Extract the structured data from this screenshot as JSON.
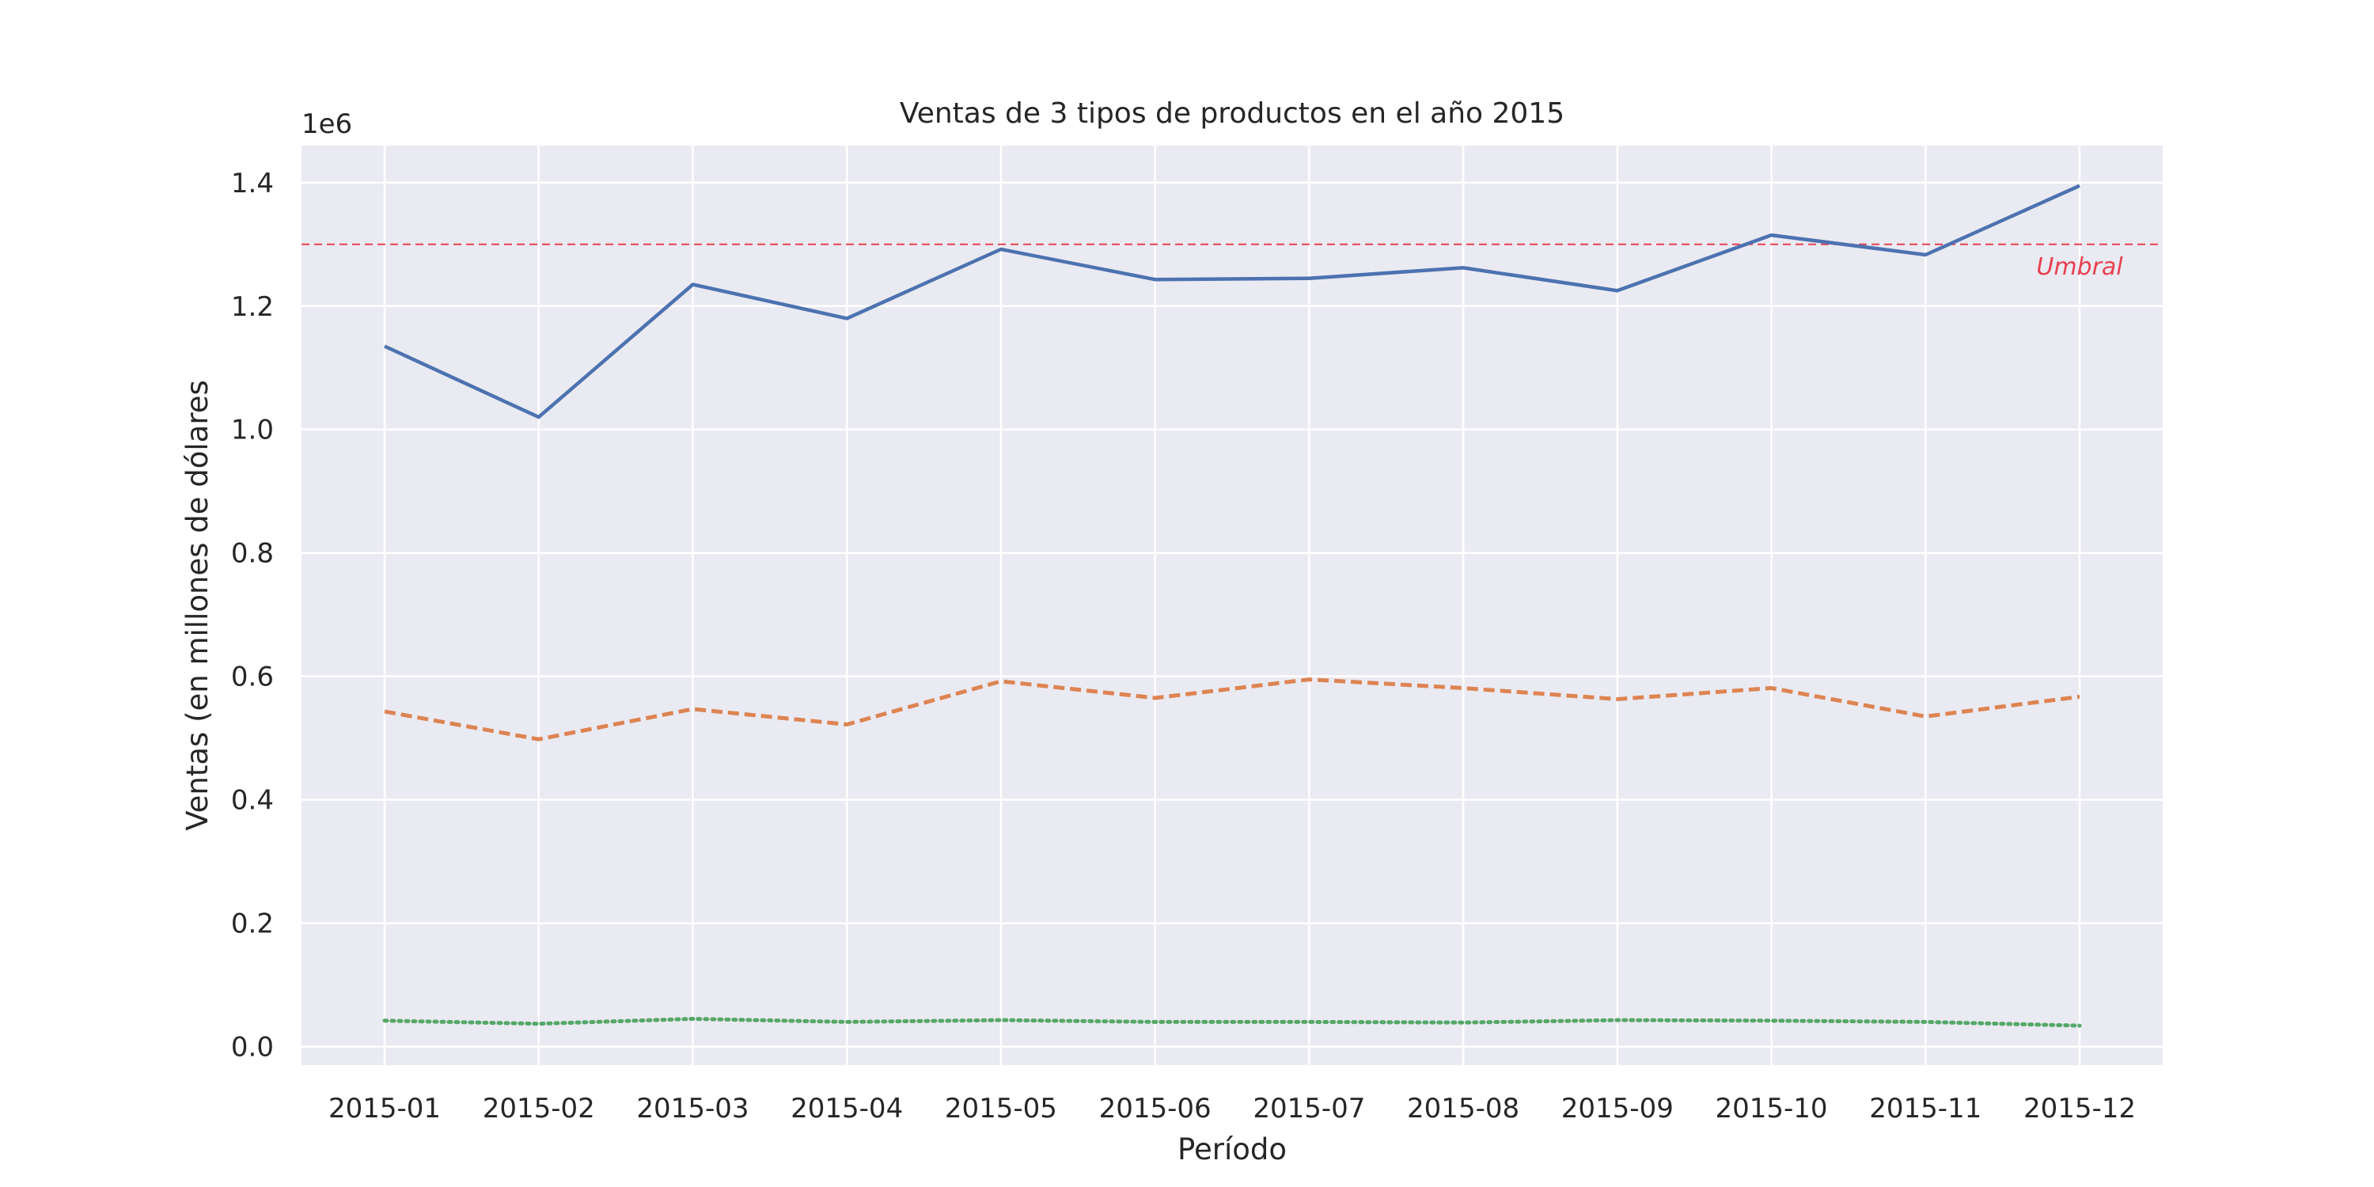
{
  "chart_data": {
    "type": "line",
    "title": "Ventas de 3 tipos de productos en el año 2015",
    "xlabel": "Período",
    "ylabel": "Ventas (en millones de dólares",
    "y_offset_label": "1e6",
    "categories": [
      "2015-01",
      "2015-02",
      "2015-03",
      "2015-04",
      "2015-05",
      "2015-06",
      "2015-07",
      "2015-08",
      "2015-09",
      "2015-10",
      "2015-11",
      "2015-12"
    ],
    "ylim": [
      -0.03,
      1.46
    ],
    "yticks": [
      0.0,
      0.2,
      0.4,
      0.6,
      0.8,
      1.0,
      1.2,
      1.4
    ],
    "ytick_labels": [
      "0.0",
      "0.2",
      "0.4",
      "0.6",
      "0.8",
      "1.0",
      "1.2",
      "1.4"
    ],
    "grid": true,
    "legend": "none",
    "series": [
      {
        "color": "#4c72b0",
        "line_style": "solid",
        "values": [
          1.135,
          1.02,
          1.235,
          1.18,
          1.292,
          1.243,
          1.245,
          1.262,
          1.225,
          1.315,
          1.283,
          1.395
        ]
      },
      {
        "color": "#dd8452",
        "line_style": "dashed",
        "values": [
          0.543,
          0.498,
          0.547,
          0.522,
          0.592,
          0.565,
          0.595,
          0.581,
          0.563,
          0.581,
          0.535,
          0.567
        ]
      },
      {
        "color": "#55a868",
        "line_style": "dotted",
        "values": [
          0.042,
          0.037,
          0.045,
          0.04,
          0.043,
          0.04,
          0.04,
          0.039,
          0.043,
          0.042,
          0.04,
          0.034
        ]
      }
    ],
    "threshold": {
      "value": 1.3,
      "label": "Umbral",
      "color": "#e8404f",
      "line_style": "dashed"
    }
  }
}
